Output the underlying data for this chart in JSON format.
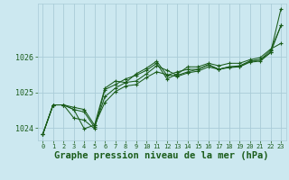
{
  "bg_color": "#cce8f0",
  "grid_color": "#aaccd8",
  "line_color": "#1a5c1a",
  "xlabel": "Graphe pression niveau de la mer (hPa)",
  "xlim": [
    -0.5,
    23.5
  ],
  "ylim": [
    1023.65,
    1027.5
  ],
  "yticks": [
    1024,
    1025,
    1026
  ],
  "xtick_labels": [
    "0",
    "1",
    "2",
    "3",
    "4",
    "5",
    "6",
    "7",
    "8",
    "9",
    "10",
    "11",
    "12",
    "13",
    "14",
    "15",
    "16",
    "17",
    "18",
    "19",
    "20",
    "21",
    "22",
    "23"
  ],
  "series": [
    [
      1023.82,
      1024.65,
      1024.65,
      1024.58,
      1024.52,
      1024.08,
      1024.72,
      1025.02,
      1025.18,
      1025.22,
      1025.42,
      1025.58,
      1025.5,
      1025.45,
      1025.55,
      1025.6,
      1025.72,
      1025.65,
      1025.7,
      1025.72,
      1025.85,
      1025.88,
      1026.12,
      1027.35
    ],
    [
      1023.82,
      1024.65,
      1024.65,
      1024.52,
      1024.45,
      1024.02,
      1024.88,
      1025.12,
      1025.28,
      1025.32,
      1025.52,
      1025.75,
      1025.62,
      1025.48,
      1025.58,
      1025.65,
      1025.78,
      1025.65,
      1025.72,
      1025.75,
      1025.88,
      1025.92,
      1026.18,
      1026.88
    ],
    [
      1023.82,
      1024.65,
      1024.65,
      1024.28,
      1024.22,
      1023.98,
      1025.08,
      1025.22,
      1025.38,
      1025.48,
      1025.62,
      1025.82,
      1025.38,
      1025.52,
      1025.72,
      1025.72,
      1025.82,
      1025.75,
      1025.82,
      1025.82,
      1025.92,
      1025.98,
      1026.22,
      1026.38
    ],
    [
      1023.82,
      1024.65,
      1024.65,
      1024.52,
      1023.98,
      1024.08,
      1025.12,
      1025.32,
      1025.28,
      1025.52,
      1025.68,
      1025.88,
      1025.48,
      1025.58,
      1025.65,
      1025.65,
      1025.78,
      1025.65,
      1025.72,
      1025.72,
      1025.88,
      1025.92,
      1026.12,
      1026.88
    ]
  ]
}
